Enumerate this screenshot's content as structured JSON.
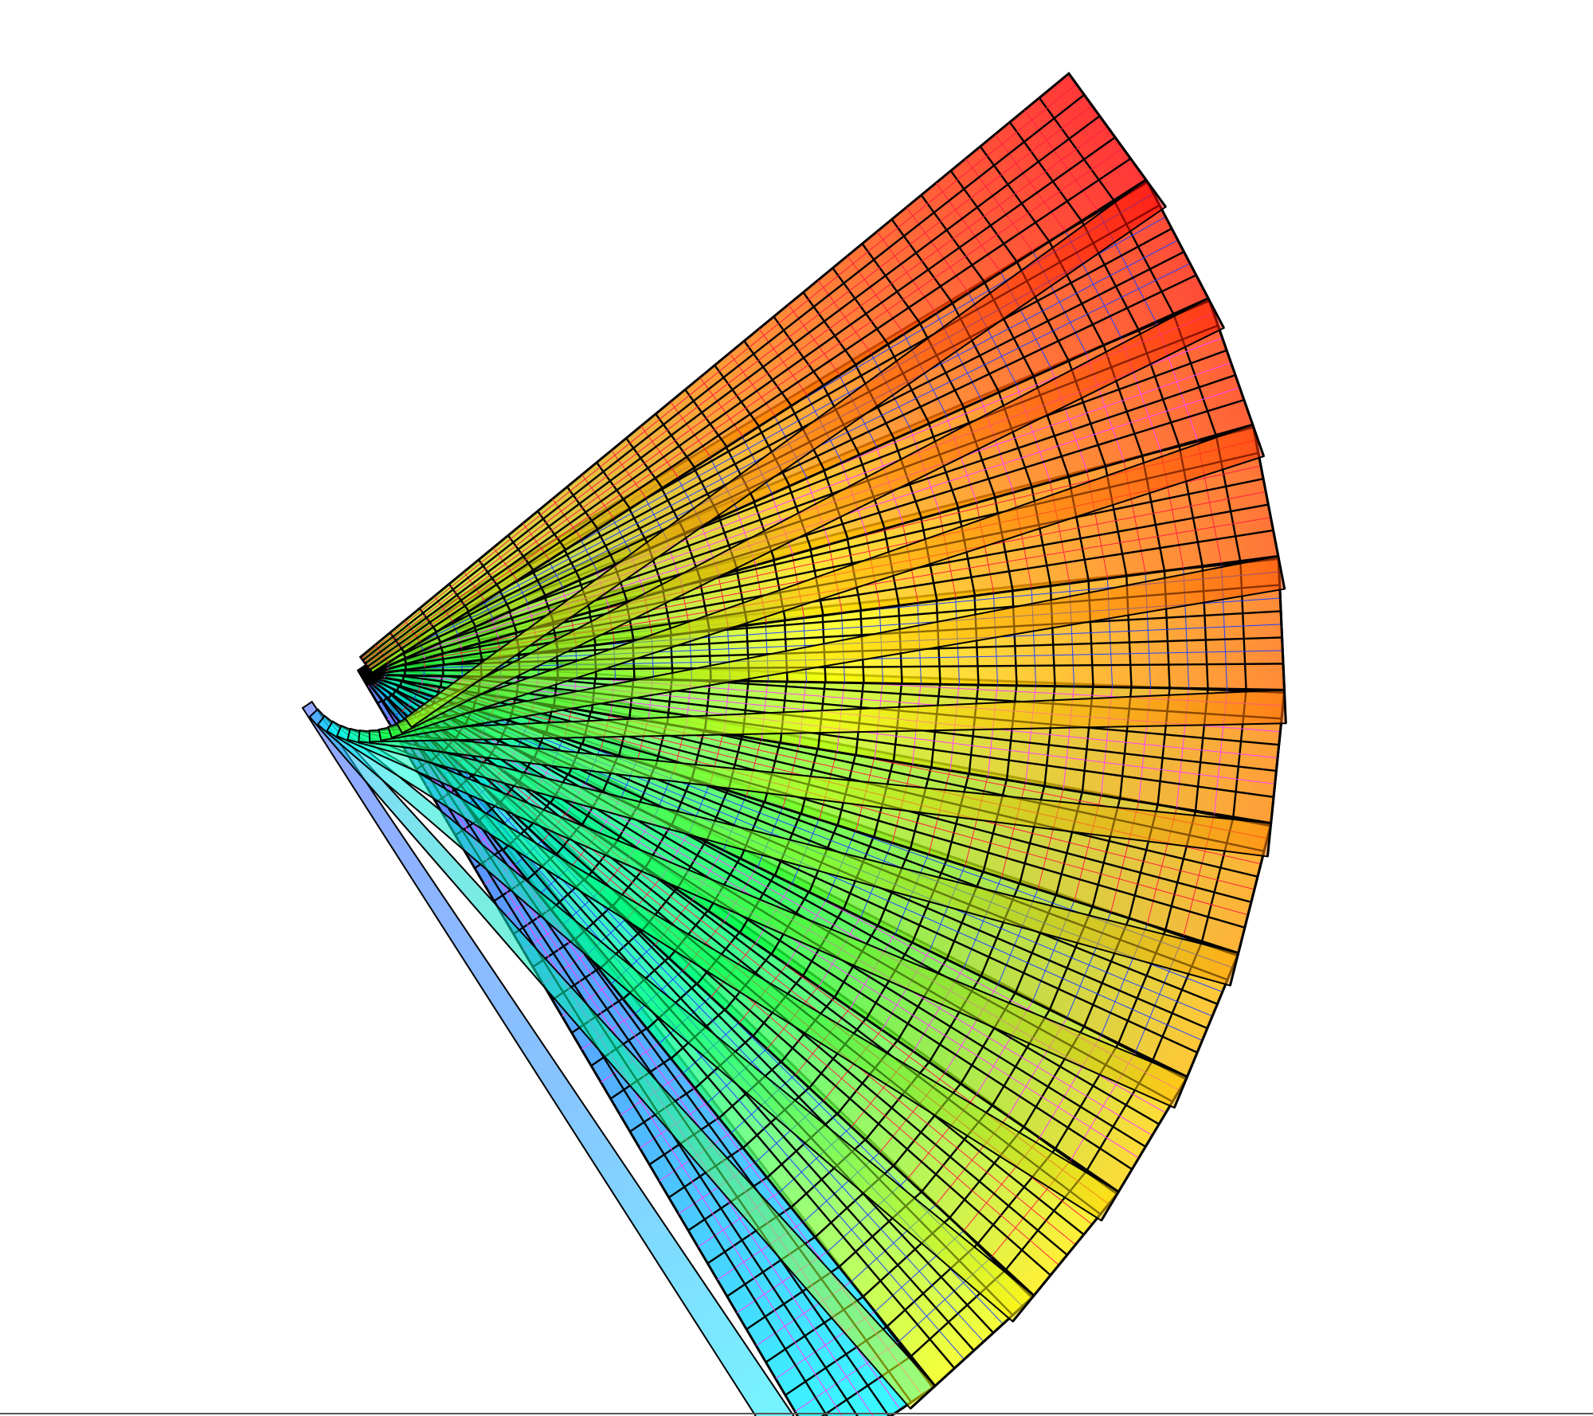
{
  "scene": {
    "subject": "fan-of-prisms-icon",
    "prism_count": 12,
    "grid_divisions_long": 24,
    "grid_divisions_short": 5,
    "fan_spread_degrees": 92,
    "palette": [
      "#4040ff",
      "#00ffff",
      "#00ff40",
      "#ffff00",
      "#ff8000",
      "#ff0000"
    ],
    "edge_color": "#000000",
    "inner_line_colors": [
      "#ff2040",
      "#2040ff",
      "#ff40ff"
    ],
    "background": "#ffffff"
  }
}
